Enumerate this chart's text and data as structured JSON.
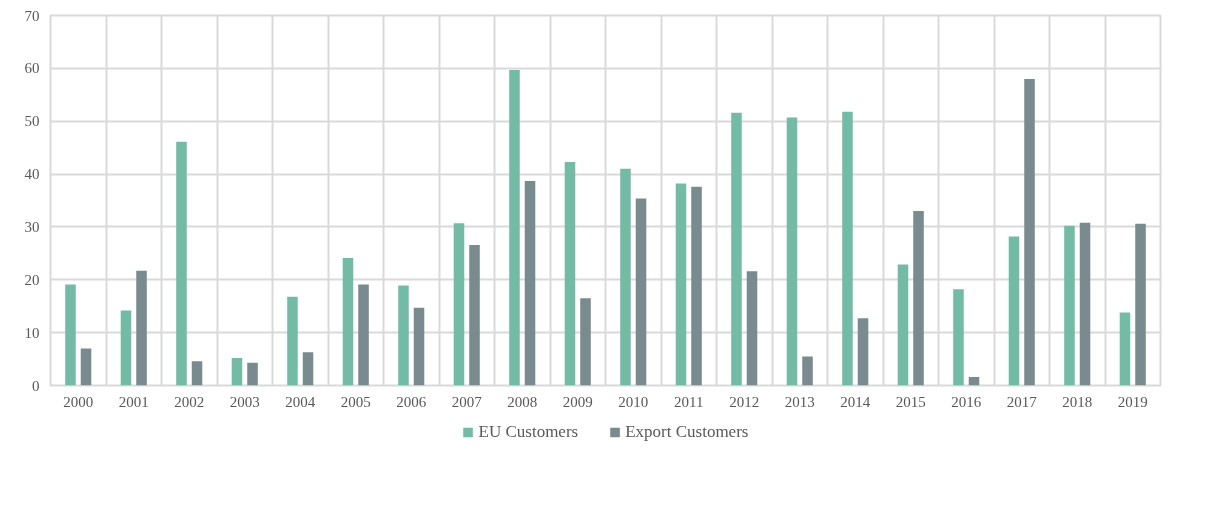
{
  "chart_data": {
    "type": "bar",
    "categories": [
      "2000",
      "2001",
      "2002",
      "2003",
      "2004",
      "2005",
      "2006",
      "2007",
      "2008",
      "2009",
      "2010",
      "2011",
      "2012",
      "2013",
      "2014",
      "2015",
      "2016",
      "2017",
      "2018",
      "2019"
    ],
    "series": [
      {
        "name": "EU Customers",
        "color": "#74bba5",
        "values": [
          19.1,
          14.2,
          46.1,
          5.2,
          16.8,
          24.1,
          18.9,
          30.7,
          59.7,
          42.3,
          41.0,
          38.2,
          51.6,
          50.7,
          51.8,
          22.9,
          18.2,
          28.2,
          30.2,
          13.8
        ]
      },
      {
        "name": "Export Customers",
        "color": "#798b8e",
        "values": [
          7.0,
          21.7,
          4.6,
          4.3,
          6.3,
          19.1,
          14.7,
          26.6,
          38.7,
          16.5,
          35.4,
          37.6,
          21.6,
          5.5,
          12.7,
          33.0,
          1.6,
          58.0,
          30.8,
          30.6
        ]
      }
    ],
    "ylim": [
      0,
      70
    ],
    "yticks": [
      0,
      10,
      20,
      30,
      40,
      50,
      60,
      70
    ],
    "grid": true,
    "legend": "bottom"
  }
}
